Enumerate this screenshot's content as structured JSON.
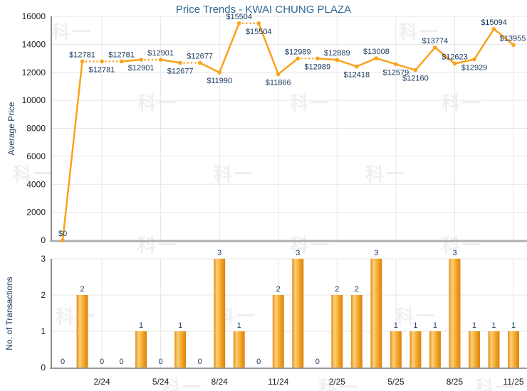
{
  "title": "Price Trends - KWAI CHUNG PLAZA",
  "watermark_text": "科一",
  "colors": {
    "title": "#2F6893",
    "line": "#FAA21B",
    "bar_gradient": [
      "#E09118",
      "#FCCF7C",
      "#F4A827",
      "#D8830F"
    ],
    "data_label": "#17375E",
    "tick_label": "#222222",
    "grid": "#E6E6E6",
    "axis_bottom_price": "#B0B0B0",
    "axis_bottom_trans": "#999999",
    "axis_left": "#666666"
  },
  "chart_data": [
    {
      "type": "line",
      "title": "Price Trends - KWAI CHUNG PLAZA",
      "ylabel": "Average Price",
      "ylim": [
        0,
        16000
      ],
      "yticks": [
        0,
        2000,
        4000,
        6000,
        8000,
        10000,
        12000,
        14000,
        16000
      ],
      "x": [
        "12/23",
        "1/24",
        "2/24",
        "3/24",
        "4/24",
        "5/24",
        "6/24",
        "7/24",
        "8/24",
        "9/24",
        "10/24",
        "11/24",
        "12/24",
        "1/25",
        "2/25",
        "3/25",
        "4/25",
        "5/25",
        "6/25",
        "7/25",
        "8/25",
        "9/25",
        "10/25",
        "11/25"
      ],
      "x_tick_labels": [
        "2/24",
        "5/24",
        "8/24",
        "11/24",
        "2/25",
        "5/25",
        "8/25",
        "11/25"
      ],
      "values": [
        0,
        12781,
        12781,
        12781,
        12901,
        12901,
        12677,
        12677,
        11990,
        15504,
        15504,
        11866,
        12989,
        12989,
        12889,
        12418,
        13008,
        12579,
        12160,
        13774,
        12623,
        12929,
        15094,
        13955
      ],
      "point_labels": [
        "$0",
        "$12781",
        "$12781",
        "$12781",
        "$12901",
        "$12901",
        "$12677",
        "$12677",
        "$11990",
        "$15504",
        "$15504",
        "$11866",
        "$12989",
        "$12989",
        "$12889",
        "$12418",
        "$13008",
        "$12579",
        "$12160",
        "$13774",
        "$12623",
        "$12929",
        "$15094",
        "$13955"
      ],
      "label_side": [
        "above",
        "above",
        "below",
        "above",
        "below",
        "above",
        "below",
        "above",
        "below",
        "above",
        "below",
        "below",
        "above",
        "below",
        "above",
        "below",
        "above",
        "below",
        "below",
        "above",
        "above",
        "below",
        "above",
        "above"
      ],
      "note": "segments leading into months with zero transactions are dotted (price carried forward)",
      "grid": true,
      "legend": false
    },
    {
      "type": "bar",
      "ylabel": "No. of Transactions",
      "ylim": [
        0,
        3
      ],
      "yticks": [
        0,
        1,
        2,
        3
      ],
      "categories": [
        "12/23",
        "1/24",
        "2/24",
        "3/24",
        "4/24",
        "5/24",
        "6/24",
        "7/24",
        "8/24",
        "9/24",
        "10/24",
        "11/24",
        "12/24",
        "1/25",
        "2/25",
        "3/25",
        "4/25",
        "5/25",
        "6/25",
        "7/25",
        "8/25",
        "9/25",
        "10/25",
        "11/25"
      ],
      "x_tick_labels": [
        "2/24",
        "5/24",
        "8/24",
        "11/24",
        "2/25",
        "5/25",
        "8/25",
        "11/25"
      ],
      "values": [
        0,
        2,
        0,
        0,
        1,
        0,
        1,
        0,
        3,
        1,
        0,
        2,
        3,
        0,
        2,
        2,
        3,
        1,
        1,
        1,
        3,
        1,
        1,
        1
      ],
      "grid": true,
      "legend": false
    }
  ]
}
